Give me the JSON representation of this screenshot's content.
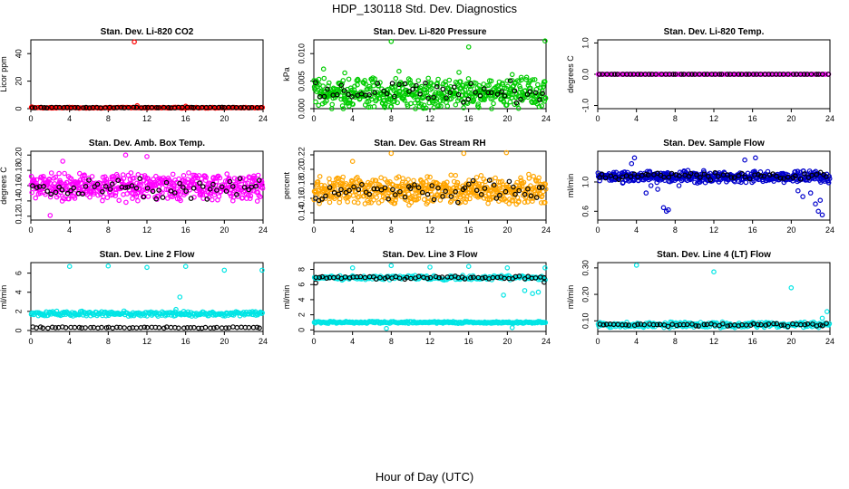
{
  "figure": {
    "title": "HDP_130118  Std. Dev. Diagnostics",
    "xlabel": "Hour of Day (UTC)"
  },
  "colors": {
    "black": "#000000",
    "red": "#ff0000",
    "magenta": "#ff00ff",
    "green": "#00cc00",
    "orange": "#ffa500",
    "blue": "#0000cc",
    "cyan": "#00e5e5"
  },
  "chart_data": [
    {
      "type": "scatter",
      "title": "Stan. Dev. Li-820 CO2",
      "ylabel": "Licor ppm",
      "xlim": [
        0,
        24
      ],
      "xticks": [
        0,
        4,
        8,
        12,
        16,
        20,
        24
      ],
      "ylim": [
        0,
        50
      ],
      "yticks": [
        0,
        20,
        40
      ],
      "ytick_labels": [
        "0",
        "20",
        "40"
      ],
      "series": [
        {
          "color": "red",
          "pattern": {
            "base": 0.7,
            "spread": 0.4,
            "n": 160
          },
          "points": [
            [
              10.7,
              48.5
            ],
            [
              0.1,
              1.3
            ],
            [
              11.0,
              2.2
            ],
            [
              16.0,
              1.8
            ]
          ]
        },
        {
          "color": "black",
          "pattern": {
            "base": 0.8,
            "spread": 0.3,
            "n": 60
          },
          "points": []
        }
      ]
    },
    {
      "type": "scatter",
      "title": "Stan. Dev. Li-820 Pressure",
      "ylabel": "kPa",
      "xlim": [
        0,
        24
      ],
      "xticks": [
        0,
        4,
        8,
        12,
        16,
        20,
        24
      ],
      "ylim": [
        0,
        0.0125
      ],
      "yticks": [
        0,
        0.005,
        0.01
      ],
      "ytick_labels": [
        "0.000",
        "0.005",
        "0.010"
      ],
      "series": [
        {
          "color": "green",
          "pattern": {
            "base": 0.0028,
            "spread": 0.0032,
            "n": 520
          },
          "points": [
            [
              8.0,
              0.0122
            ],
            [
              16.0,
              0.0112
            ],
            [
              23.9,
              0.0123
            ],
            [
              1.0,
              0.0072
            ],
            [
              3.2,
              0.0065
            ],
            [
              8.8,
              0.0068
            ],
            [
              15.0,
              0.0066
            ],
            [
              20.5,
              0.0062
            ]
          ]
        },
        {
          "color": "black",
          "pattern": {
            "base": 0.0028,
            "spread": 0.0024,
            "n": 55
          },
          "points": []
        }
      ]
    },
    {
      "type": "scatter",
      "title": "Stan. Dev. Li-820 Temp.",
      "ylabel": "degrees C",
      "xlim": [
        0,
        24
      ],
      "xticks": [
        0,
        4,
        8,
        12,
        16,
        20,
        24
      ],
      "ylim": [
        -1.1,
        1.1
      ],
      "yticks": [
        -1,
        0,
        1
      ],
      "ytick_labels": [
        "-1.0",
        "0.0",
        "1.0"
      ],
      "series": [
        {
          "color": "magenta",
          "pattern": {
            "base": 0,
            "spread": 0,
            "n": 160
          },
          "points": []
        },
        {
          "color": "black",
          "pattern": {
            "base": 0,
            "spread": 0,
            "n": 60
          },
          "points": []
        }
      ]
    },
    {
      "type": "scatter",
      "title": "Stan. Dev. Amb. Box Temp.",
      "ylabel": "degrees C",
      "xlim": [
        0,
        24
      ],
      "xticks": [
        0,
        4,
        8,
        12,
        16,
        20,
        24
      ],
      "ylim": [
        0.115,
        0.205
      ],
      "yticks": [
        0.12,
        0.14,
        0.16,
        0.18,
        0.2
      ],
      "ytick_labels": [
        "0.12",
        "0.14",
        "0.16",
        "0.18",
        "0.20"
      ],
      "series": [
        {
          "color": "magenta",
          "pattern": {
            "base": 0.158,
            "spread": 0.02,
            "n": 520
          },
          "points": [
            [
              9.8,
              0.2
            ],
            [
              3.3,
              0.192
            ],
            [
              12.0,
              0.198
            ],
            [
              2.0,
              0.121
            ]
          ]
        },
        {
          "color": "black",
          "pattern": {
            "base": 0.156,
            "spread": 0.016,
            "n": 60
          },
          "points": []
        }
      ]
    },
    {
      "type": "scatter",
      "title": "Stan. Dev. Gas Stream RH",
      "ylabel": "percent",
      "xlim": [
        0,
        24
      ],
      "xticks": [
        0,
        4,
        8,
        12,
        16,
        20,
        24
      ],
      "ylim": [
        0.13,
        0.225
      ],
      "yticks": [
        0.14,
        0.16,
        0.18,
        0.2,
        0.22
      ],
      "ytick_labels": [
        "0.14",
        "0.16",
        "0.18",
        "0.20",
        "0.22"
      ],
      "series": [
        {
          "color": "orange",
          "pattern": {
            "base": 0.172,
            "spread": 0.022,
            "n": 520
          },
          "points": [
            [
              8.0,
              0.222
            ],
            [
              15.5,
              0.222
            ],
            [
              19.9,
              0.223
            ],
            [
              4.0,
              0.211
            ]
          ]
        },
        {
          "color": "black",
          "pattern": {
            "base": 0.17,
            "spread": 0.018,
            "n": 60
          },
          "points": []
        }
      ]
    },
    {
      "type": "scatter",
      "title": "Stan. Dev. Sample Flow",
      "ylabel": "ml/min",
      "xlim": [
        0,
        24
      ],
      "xticks": [
        0,
        4,
        8,
        12,
        16,
        20,
        24
      ],
      "ylim": [
        0.48,
        1.42
      ],
      "yticks": [
        0.6,
        1.0
      ],
      "ytick_labels": [
        "0.6",
        "1.0"
      ],
      "series": [
        {
          "color": "blue",
          "pattern": {
            "base": 1.07,
            "spread": 0.09,
            "n": 480
          },
          "points": [
            [
              6.8,
              0.65
            ],
            [
              7.1,
              0.6
            ],
            [
              7.3,
              0.62
            ],
            [
              6.2,
              0.9
            ],
            [
              5.5,
              0.95
            ],
            [
              5.0,
              0.85
            ],
            [
              3.8,
              1.33
            ],
            [
              3.5,
              1.25
            ],
            [
              20.7,
              0.88
            ],
            [
              21.2,
              0.8
            ],
            [
              22.5,
              0.7
            ],
            [
              22.8,
              0.6
            ],
            [
              23.2,
              0.55
            ],
            [
              23.0,
              0.75
            ],
            [
              22.0,
              0.85
            ],
            [
              8.4,
              0.95
            ],
            [
              10.5,
              1.0
            ],
            [
              13.0,
              1.05
            ],
            [
              16.3,
              1.33
            ],
            [
              15.2,
              1.3
            ]
          ]
        },
        {
          "color": "black",
          "pattern": {
            "base": 1.08,
            "spread": 0.06,
            "n": 60
          },
          "points": []
        }
      ]
    },
    {
      "type": "scatter",
      "title": "Stan. Dev. Line 2 Flow",
      "ylabel": "ml/min",
      "xlim": [
        0,
        24
      ],
      "xticks": [
        0,
        4,
        8,
        12,
        16,
        20,
        24
      ],
      "ylim": [
        -0.1,
        7.1
      ],
      "yticks": [
        0,
        2,
        4,
        6
      ],
      "ytick_labels": [
        "0",
        "2",
        "4",
        "6"
      ],
      "series": [
        {
          "color": "cyan",
          "pattern": {
            "base": 1.75,
            "spread": 0.3,
            "n": 260
          },
          "points": [
            [
              4.0,
              6.7
            ],
            [
              8.0,
              6.75
            ],
            [
              12.0,
              6.6
            ],
            [
              16.0,
              6.7
            ],
            [
              20.0,
              6.3
            ],
            [
              23.9,
              6.3
            ],
            [
              15.4,
              3.5
            ],
            [
              15.0,
              2.2
            ]
          ]
        },
        {
          "color": "black",
          "pattern": {
            "base": 0.3,
            "spread": 0.08,
            "n": 60
          },
          "points": []
        }
      ]
    },
    {
      "type": "scatter",
      "title": "Stan. Dev. Line 3 Flow",
      "ylabel": "ml/min",
      "xlim": [
        0,
        24
      ],
      "xticks": [
        0,
        4,
        8,
        12,
        16,
        20,
        24
      ],
      "ylim": [
        -0.2,
        8.9
      ],
      "yticks": [
        0,
        2,
        4,
        6,
        8
      ],
      "ytick_labels": [
        "0",
        "2",
        "4",
        "6",
        "8"
      ],
      "series": [
        {
          "color": "cyan",
          "pattern": {
            "base": 1.0,
            "spread": 0.15,
            "n": 260
          },
          "points": []
        },
        {
          "color": "cyan",
          "pattern": {
            "base": 6.9,
            "spread": 0.35,
            "n": 200
          },
          "points": [
            [
              4.0,
              8.2
            ],
            [
              8.0,
              8.5
            ],
            [
              12.0,
              8.3
            ],
            [
              16.0,
              8.4
            ],
            [
              20.0,
              8.2
            ],
            [
              23.9,
              8.2
            ],
            [
              19.6,
              4.6
            ],
            [
              21.8,
              5.2
            ],
            [
              22.6,
              4.8
            ],
            [
              23.2,
              5.0
            ],
            [
              7.5,
              0.2
            ],
            [
              20.5,
              0.3
            ]
          ]
        },
        {
          "color": "black",
          "pattern": {
            "base": 6.9,
            "spread": 0.25,
            "n": 60
          },
          "points": [
            [
              23.8,
              6.3
            ],
            [
              0.2,
              6.2
            ]
          ]
        }
      ]
    },
    {
      "type": "scatter",
      "title": "Stan. Dev. Line 4 (LT) Flow",
      "ylabel": "ml/min",
      "xlim": [
        0,
        24
      ],
      "xticks": [
        0,
        4,
        8,
        12,
        16,
        20,
        24
      ],
      "ylim": [
        0.06,
        0.32
      ],
      "yticks": [
        0.1,
        0.2,
        0.3
      ],
      "ytick_labels": [
        "0.10",
        "0.20",
        "0.30"
      ],
      "series": [
        {
          "color": "cyan",
          "pattern": {
            "base": 0.085,
            "spread": 0.012,
            "n": 260
          },
          "points": [
            [
              4.0,
              0.31
            ],
            [
              12.0,
              0.285
            ],
            [
              20.0,
              0.225
            ],
            [
              23.7,
              0.135
            ],
            [
              23.2,
              0.11
            ]
          ]
        },
        {
          "color": "black",
          "pattern": {
            "base": 0.085,
            "spread": 0.008,
            "n": 60
          },
          "points": []
        }
      ]
    }
  ]
}
